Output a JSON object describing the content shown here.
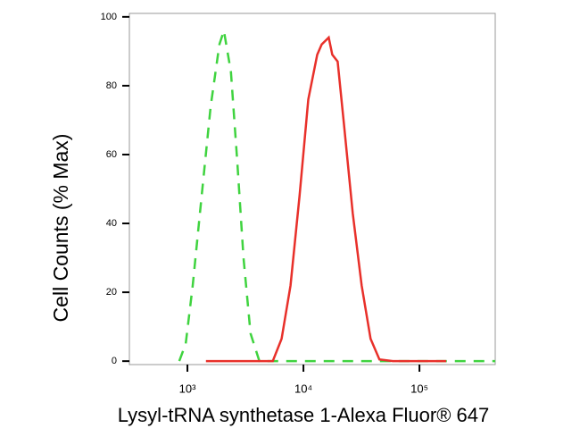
{
  "chart_data": {
    "type": "line",
    "y_label": "Cell Counts (% Max)",
    "x_label": "Lysyl-tRNA synthetase 1-Alexa Fluor® 647",
    "xscale": "log",
    "xlim": [
      316,
      450000
    ],
    "xticks": [
      {
        "value": 1000,
        "label": "10³"
      },
      {
        "value": 10000,
        "label": "10⁴"
      },
      {
        "value": 100000,
        "label": "10⁵"
      }
    ],
    "ylim": [
      -1,
      101
    ],
    "yticks": [
      0,
      20,
      40,
      60,
      80,
      100
    ],
    "series": [
      {
        "color": "#3fd33f",
        "dash": true,
        "x": [
          851,
          966,
          1112,
          1327,
          1585,
          1888,
          2061,
          2372,
          2690,
          3043,
          3500,
          4170,
          450000
        ],
        "values": [
          0,
          5,
          22,
          48,
          74,
          92,
          96,
          84,
          58,
          30,
          8,
          0,
          0
        ]
      },
      {
        "color": "#e8302a",
        "dash": false,
        "x": [
          1445,
          5445,
          6490,
          7740,
          9250,
          11020,
          13150,
          14350,
          16520,
          17740,
          19720,
          22320,
          26610,
          31770,
          37930,
          45200,
          58880,
          169800
        ],
        "values": [
          0,
          0,
          6.5,
          22,
          48,
          76,
          89,
          92,
          94,
          89,
          87,
          69,
          43,
          22,
          6.5,
          0.5,
          0,
          0
        ]
      }
    ]
  }
}
